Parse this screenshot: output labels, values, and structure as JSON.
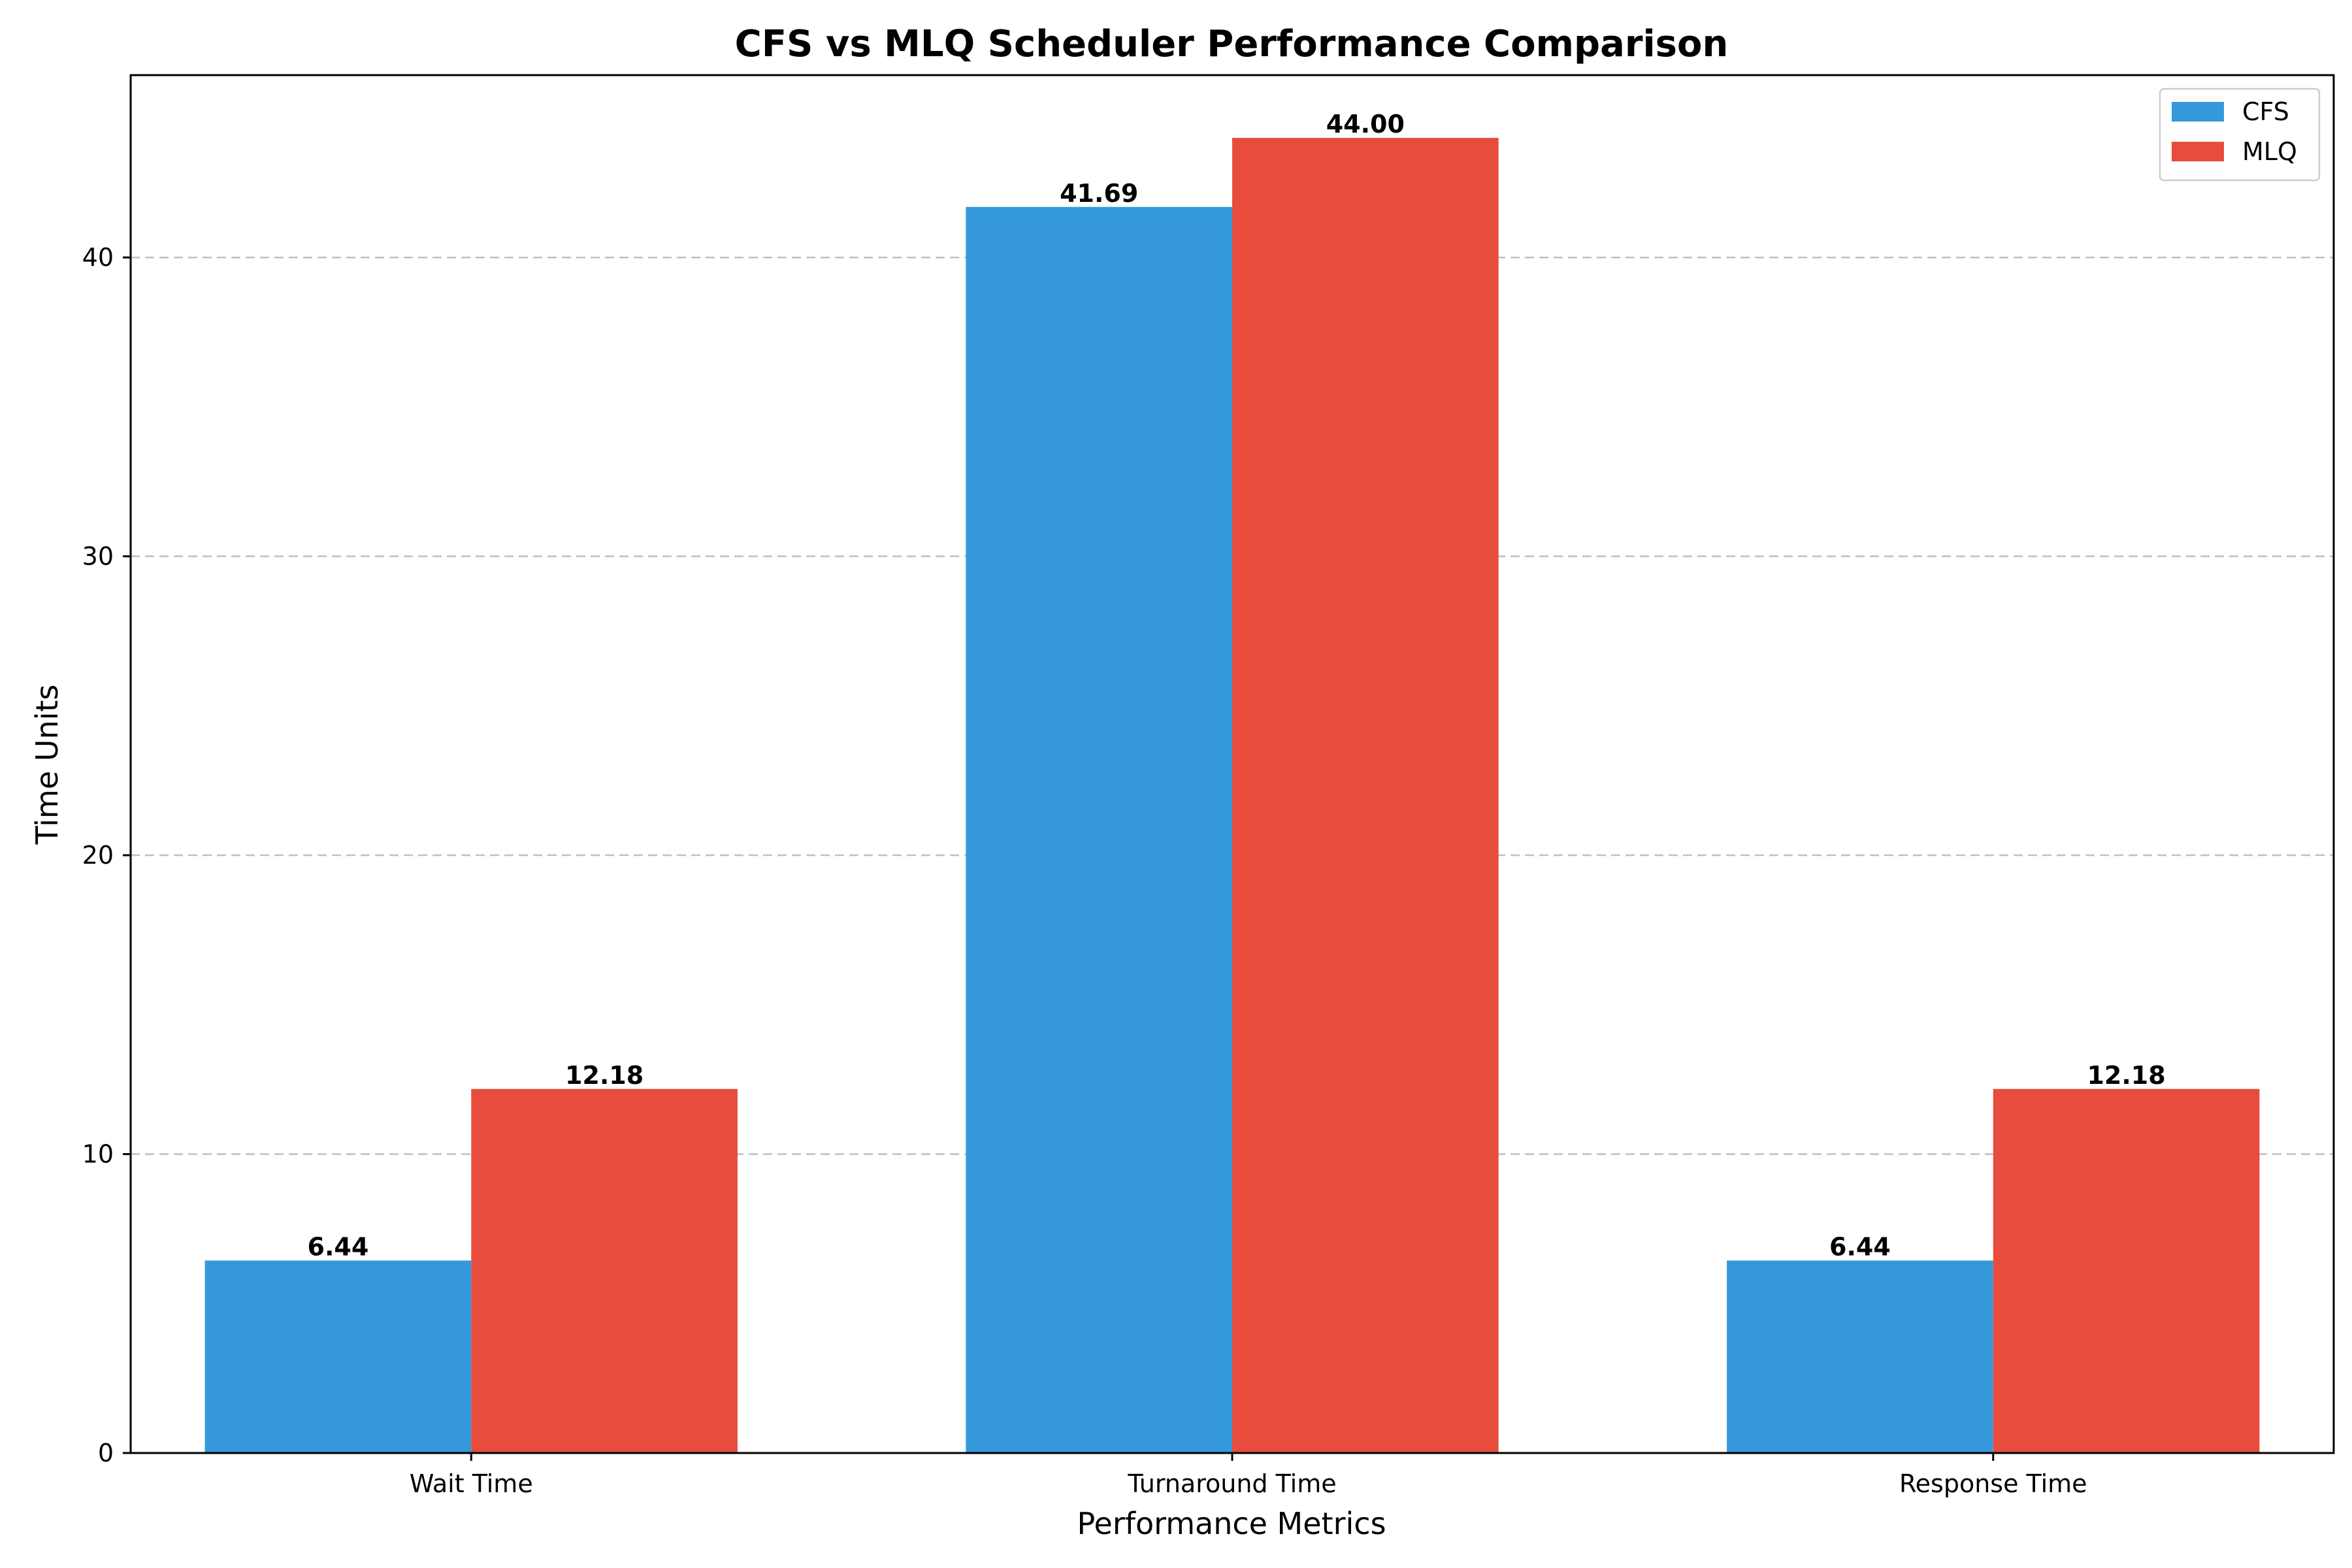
{
  "chart_data": {
    "type": "bar",
    "title": "CFS vs MLQ Scheduler Performance Comparison",
    "xlabel": "Performance Metrics",
    "ylabel": "Time Units",
    "categories": [
      "Wait Time",
      "Turnaround Time",
      "Response Time"
    ],
    "series": [
      {
        "name": "CFS",
        "color": "#3598db",
        "values": [
          6.44,
          41.69,
          6.44
        ],
        "labels": [
          "6.44",
          "41.69",
          "6.44"
        ]
      },
      {
        "name": "MLQ",
        "color": "#e74c3d",
        "values": [
          12.18,
          44.0,
          12.18
        ],
        "labels": [
          "12.18",
          "44.00",
          "12.18"
        ]
      }
    ],
    "ylim": [
      0,
      46.1
    ],
    "yticks": [
      0,
      10,
      20,
      30,
      40
    ],
    "grid": "y-axis dashed",
    "legend_position": "top-right"
  }
}
